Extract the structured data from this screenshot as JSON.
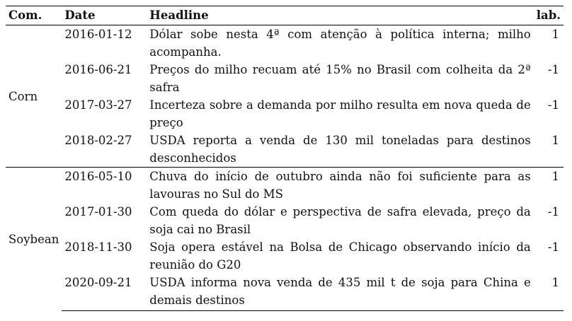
{
  "table": {
    "columns": [
      "Com.",
      "Date",
      "Headline",
      "lab."
    ],
    "groups": [
      {
        "commodity": "Corn",
        "rows": [
          {
            "date": "2016-01-12",
            "headline": "Dólar sobe nesta 4ª com atenção à política interna; milho acompanha.",
            "label": "1"
          },
          {
            "date": "2016-06-21",
            "headline": "Preços do milho recuam até 15% no Brasil com colheita da 2ª safra",
            "label": "-1"
          },
          {
            "date": "2017-03-27",
            "headline": "Incerteza sobre a demanda por milho resulta em nova queda de preço",
            "label": "-1"
          },
          {
            "date": "2018-02-27",
            "headline": "USDA reporta a venda de 130 mil toneladas para destinos desconhecidos",
            "label": "1"
          }
        ]
      },
      {
        "commodity": "Soybean",
        "rows": [
          {
            "date": "2016-05-10",
            "headline": "Chuva do início de outubro ainda não foi suficiente para as lavouras no Sul do MS",
            "label": "1"
          },
          {
            "date": "2017-01-30",
            "headline": "Com queda do dólar e perspectiva de safra elevada, preço da soja cai no Brasil",
            "label": "-1"
          },
          {
            "date": "2018-11-30",
            "headline": "Soja opera estável na Bolsa de Chicago observando início da reunião do G20",
            "label": "-1"
          },
          {
            "date": "2020-09-21",
            "headline": "USDA informa nova venda de 435 mil t de soja para China e demais destinos",
            "label": "1"
          }
        ]
      }
    ]
  }
}
